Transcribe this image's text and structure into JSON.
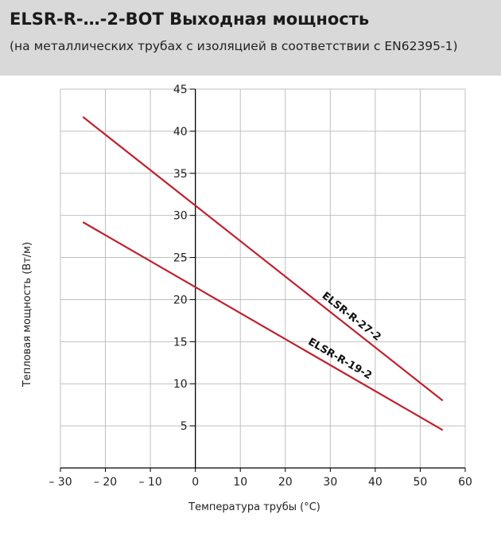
{
  "header": {
    "title": "ELSR-R-…-2-BOT Выходная мощность",
    "subtitle": "(на металлических трубах с изоляцией в соответствии с EN62395-1)"
  },
  "chart_data": {
    "type": "line",
    "xlabel": "Температура трубы (°C)",
    "ylabel": "Тепловая мощность (Вт/м)",
    "xlim": [
      -30,
      60
    ],
    "ylim": [
      0,
      45
    ],
    "x_ticks": [
      -30,
      -20,
      -10,
      0,
      10,
      20,
      30,
      40,
      50,
      60
    ],
    "x_tick_labels": [
      "– 30",
      "– 20",
      "– 10",
      "0",
      "10",
      "20",
      "30",
      "40",
      "50",
      "60"
    ],
    "y_ticks": [
      5,
      10,
      15,
      20,
      25,
      30,
      35,
      40,
      45
    ],
    "y_tick_labels": [
      "5",
      "10",
      "15",
      "20",
      "25",
      "30",
      "35",
      "40",
      "45"
    ],
    "grid": true,
    "series": [
      {
        "name": "ELSR-R-27-2",
        "x": [
          -25,
          55
        ],
        "y": [
          41.7,
          8.0
        ],
        "color": "#c0202e"
      },
      {
        "name": "ELSR-R-19-2",
        "x": [
          -25,
          55
        ],
        "y": [
          29.2,
          4.5
        ],
        "color": "#c0202e"
      }
    ]
  },
  "colors": {
    "header_bg": "#d9d9d9",
    "grid": "#bfbfbf",
    "axis": "#000000",
    "line": "#c0202e"
  }
}
